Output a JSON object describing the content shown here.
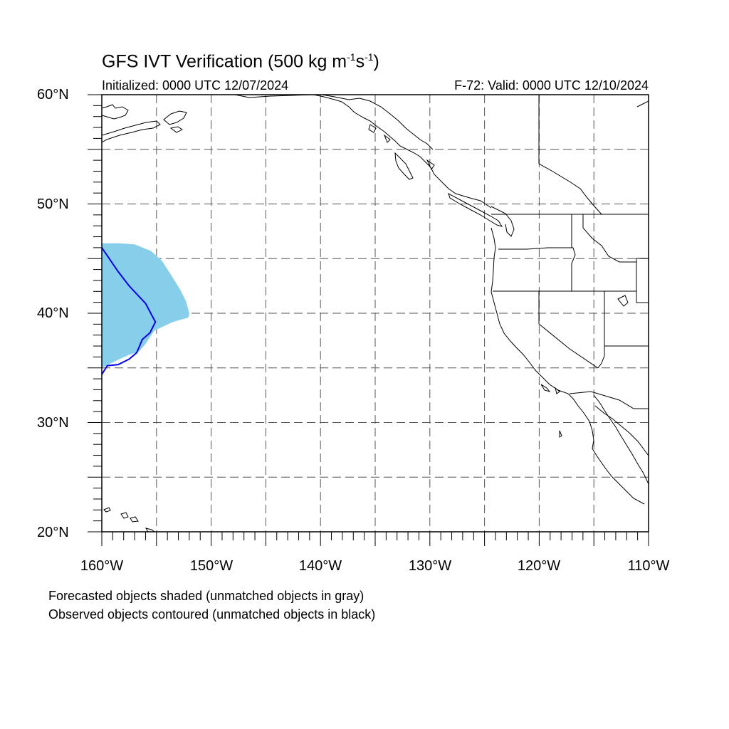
{
  "title": {
    "prefix": "GFS IVT Verification (500 kg m",
    "exp1": "-1",
    "mid": "s",
    "exp2": "-1",
    "suffix": ")"
  },
  "initialized_label": "Initialized: 0000 UTC 12/07/2024",
  "valid_label": "F-72: Valid: 0000 UTC 12/10/2024",
  "lat_labels": [
    "60°N",
    "50°N",
    "40°N",
    "30°N",
    "20°N"
  ],
  "lon_labels": [
    "160°W",
    "150°W",
    "140°W",
    "130°W",
    "120°W",
    "110°W"
  ],
  "notes": [
    "Forecasted objects shaded (unmatched objects in gray)",
    "Observed objects contoured (unmatched objects in black)"
  ],
  "map": {
    "lon_range": [
      -160,
      -110
    ],
    "lat_range": [
      20,
      60
    ],
    "grid_spacing_deg": 5,
    "colors": {
      "forecast_fill": "#87ceeb",
      "observed_contour": "#0000ee",
      "coastline": "#000000",
      "grid": "#555555"
    },
    "forecast_object": [
      [
        -160,
        46.4
      ],
      [
        -158.5,
        46.4
      ],
      [
        -157,
        46.3
      ],
      [
        -155.5,
        45.7
      ],
      [
        -154.5,
        44.8
      ],
      [
        -153.6,
        43.4
      ],
      [
        -152.8,
        42.1
      ],
      [
        -152.3,
        41.1
      ],
      [
        -152,
        40
      ],
      [
        -152.1,
        39.6
      ],
      [
        -153.5,
        39.2
      ],
      [
        -155.2,
        38.4
      ],
      [
        -156,
        37.2
      ],
      [
        -156.6,
        36.5
      ],
      [
        -157.5,
        36.2
      ],
      [
        -158.6,
        35.7
      ],
      [
        -160,
        35
      ]
    ],
    "observed_object": [
      [
        -160,
        46
      ],
      [
        -158.5,
        43.8
      ],
      [
        -157.5,
        42.5
      ],
      [
        -156,
        40.9
      ],
      [
        -155.1,
        39.2
      ],
      [
        -155.6,
        38.2
      ],
      [
        -156.3,
        37.6
      ],
      [
        -156.8,
        36.4
      ],
      [
        -157.5,
        35.8
      ],
      [
        -158.5,
        35.3
      ],
      [
        -159.5,
        35.2
      ],
      [
        -160,
        34.4
      ]
    ]
  }
}
